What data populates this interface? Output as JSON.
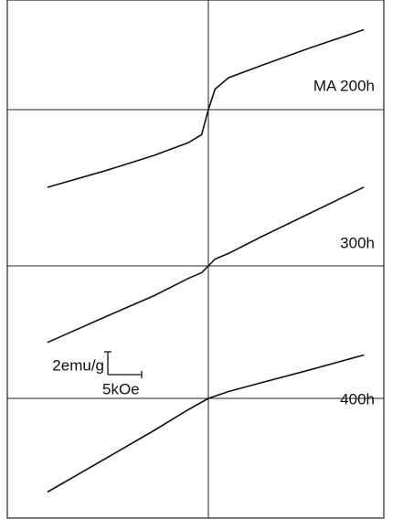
{
  "chart_data": [
    {
      "type": "line",
      "label": "MA 200h",
      "x": [
        -23.8,
        -15,
        -8,
        -3,
        -1,
        0,
        1,
        3,
        8,
        15,
        23
      ],
      "y": [
        -6.8,
        -5.3,
        -4.0,
        -2.9,
        -2.2,
        0,
        1.8,
        2.8,
        3.9,
        5.4,
        7.0
      ]
    },
    {
      "type": "line",
      "label": "300h",
      "x": [
        -23.8,
        -15,
        -8,
        -3,
        -1,
        0,
        1,
        3,
        8,
        15,
        23
      ],
      "y": [
        -6.7,
        -4.4,
        -2.6,
        -1.1,
        -0.6,
        0,
        0.6,
        1.1,
        2.6,
        4.6,
        6.9
      ]
    },
    {
      "type": "line",
      "label": "400h",
      "x": [
        -23.8,
        -15,
        -8,
        -3,
        0,
        3,
        8,
        15,
        23
      ],
      "y": [
        -8.2,
        -5.2,
        -2.8,
        -1.0,
        0,
        0.6,
        1.4,
        2.5,
        3.8
      ]
    }
  ],
  "scale_bar": {
    "x": {
      "value": 5,
      "label": "5kOe"
    },
    "y": {
      "value": 2,
      "label": "2emu/g"
    }
  }
}
